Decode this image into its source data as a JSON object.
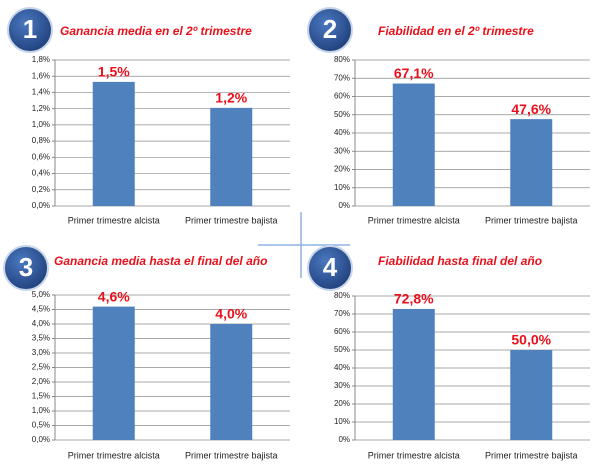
{
  "chart_data": [
    {
      "type": "bar",
      "badge": "1",
      "title": "Ganancia media en el 2º trimestre",
      "categories": [
        "Primer trimestre alcista",
        "Primer trimestre bajista"
      ],
      "values": [
        1.53,
        1.21
      ],
      "value_labels": [
        "1,5%",
        "1,2%"
      ],
      "color": "#4f81bd",
      "ylim": [
        0,
        1.8
      ],
      "yticks": [
        {
          "value": 0,
          "label": "0,0%"
        },
        {
          "value": 0.2,
          "label": "0,2%"
        },
        {
          "value": 0.4,
          "label": "0,4%"
        },
        {
          "value": 0.6,
          "label": "0,6%"
        },
        {
          "value": 0.8,
          "label": "0,8%"
        },
        {
          "value": 1.0,
          "label": "1,0%"
        },
        {
          "value": 1.2,
          "label": "1,2%"
        },
        {
          "value": 1.4,
          "label": "1,4%"
        },
        {
          "value": 1.6,
          "label": "1,6%"
        },
        {
          "value": 1.8,
          "label": "1,8%"
        }
      ],
      "grid": true
    },
    {
      "type": "bar",
      "badge": "2",
      "title": "Fiabilidad en el 2º trimestre",
      "categories": [
        "Primer trimestre alcista",
        "Primer trimestre bajista"
      ],
      "values": [
        67.1,
        47.6
      ],
      "value_labels": [
        "67,1%",
        "47,6%"
      ],
      "color": "#4f81bd",
      "ylim": [
        0,
        80
      ],
      "yticks": [
        {
          "value": 0,
          "label": "0%"
        },
        {
          "value": 10,
          "label": "10%"
        },
        {
          "value": 20,
          "label": "20%"
        },
        {
          "value": 30,
          "label": "30%"
        },
        {
          "value": 40,
          "label": "40%"
        },
        {
          "value": 50,
          "label": "50%"
        },
        {
          "value": 60,
          "label": "60%"
        },
        {
          "value": 70,
          "label": "70%"
        },
        {
          "value": 80,
          "label": "80%"
        }
      ],
      "grid": true
    },
    {
      "type": "bar",
      "badge": "3",
      "title": "Ganancia media hasta el final del año",
      "categories": [
        "Primer trimestre alcista",
        "Primer trimestre bajista"
      ],
      "values": [
        4.6,
        4.0
      ],
      "value_labels": [
        "4,6%",
        "4,0%"
      ],
      "color": "#4f81bd",
      "ylim": [
        0,
        5
      ],
      "yticks": [
        {
          "value": 0,
          "label": "0,0%"
        },
        {
          "value": 0.5,
          "label": "0,5%"
        },
        {
          "value": 1.0,
          "label": "1,0%"
        },
        {
          "value": 1.5,
          "label": "1,5%"
        },
        {
          "value": 2.0,
          "label": "2,0%"
        },
        {
          "value": 2.5,
          "label": "2,5%"
        },
        {
          "value": 3.0,
          "label": "3,0%"
        },
        {
          "value": 3.5,
          "label": "3,5%"
        },
        {
          "value": 4.0,
          "label": "4,0%"
        },
        {
          "value": 4.5,
          "label": "4,5%"
        },
        {
          "value": 5.0,
          "label": "5,0%"
        }
      ],
      "grid": true
    },
    {
      "type": "bar",
      "badge": "4",
      "title": "Fiabilidad hasta final del año",
      "categories": [
        "Primer trimestre alcista",
        "Primer trimestre bajista"
      ],
      "values": [
        72.8,
        50.0
      ],
      "value_labels": [
        "72,8%",
        "50,0%"
      ],
      "color": "#4f81bd",
      "ylim": [
        0,
        80
      ],
      "yticks": [
        {
          "value": 0,
          "label": "0%"
        },
        {
          "value": 10,
          "label": "10%"
        },
        {
          "value": 20,
          "label": "20%"
        },
        {
          "value": 30,
          "label": "30%"
        },
        {
          "value": 40,
          "label": "40%"
        },
        {
          "value": 50,
          "label": "50%"
        },
        {
          "value": 60,
          "label": "60%"
        },
        {
          "value": 70,
          "label": "70%"
        },
        {
          "value": 80,
          "label": "80%"
        }
      ],
      "grid": true
    }
  ]
}
